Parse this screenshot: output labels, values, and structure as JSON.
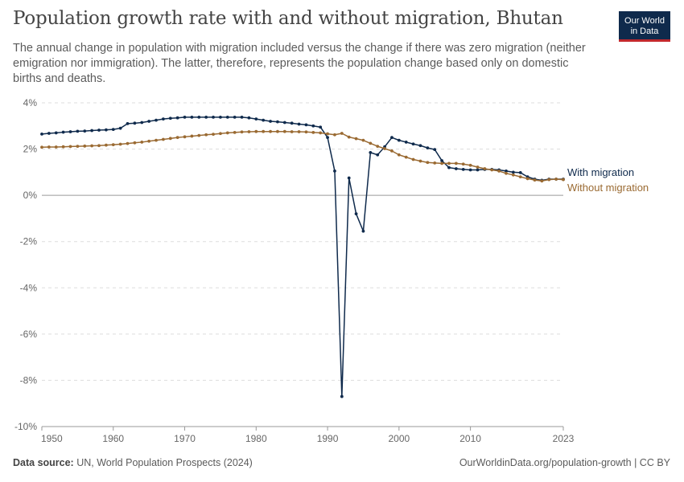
{
  "header": {
    "title": "Population growth rate with and without migration, Bhutan",
    "subtitle": "The annual change in population with migration included versus the change if there was zero migration (neither emigration nor immigration). The latter, therefore, represents the population change based only on domestic births and deaths."
  },
  "logo": {
    "line1": "Our World",
    "line2": "in Data"
  },
  "footer": {
    "source_label": "Data source:",
    "source_text": "UN, World Population Prospects (2024)",
    "link_text": "OurWorldinData.org/population-growth | CC BY"
  },
  "colors": {
    "with_migration": "#0f2a4c",
    "without_migration": "#9a6a32",
    "grid": "#dddddd",
    "zero_line": "#9a9a9a"
  },
  "chart_data": {
    "type": "line",
    "title": "Population growth rate with and without migration, Bhutan",
    "xlabel": "",
    "ylabel": "",
    "xlim": [
      1950,
      2023
    ],
    "ylim": [
      -10,
      4
    ],
    "y_ticks": [
      4,
      2,
      0,
      -2,
      -4,
      -6,
      -8,
      -10
    ],
    "y_tick_labels": [
      "4%",
      "2%",
      "0%",
      "-2%",
      "-4%",
      "-6%",
      "-8%",
      "-10%"
    ],
    "x_ticks": [
      1950,
      1960,
      1970,
      1980,
      1990,
      2000,
      2010,
      2023
    ],
    "x_tick_labels": [
      "1950",
      "1960",
      "1970",
      "1980",
      "1990",
      "2000",
      "2010",
      "2023"
    ],
    "grid": "horizontal dashed",
    "legend": "inline labels at right end of lines",
    "x": [
      1950,
      1951,
      1952,
      1953,
      1954,
      1955,
      1956,
      1957,
      1958,
      1959,
      1960,
      1961,
      1962,
      1963,
      1964,
      1965,
      1966,
      1967,
      1968,
      1969,
      1970,
      1971,
      1972,
      1973,
      1974,
      1975,
      1976,
      1977,
      1978,
      1979,
      1980,
      1981,
      1982,
      1983,
      1984,
      1985,
      1986,
      1987,
      1988,
      1989,
      1990,
      1991,
      1992,
      1993,
      1994,
      1995,
      1996,
      1997,
      1998,
      1999,
      2000,
      2001,
      2002,
      2003,
      2004,
      2005,
      2006,
      2007,
      2008,
      2009,
      2010,
      2011,
      2012,
      2013,
      2014,
      2015,
      2016,
      2017,
      2018,
      2019,
      2020,
      2021,
      2022,
      2023
    ],
    "series": [
      {
        "name": "With migration",
        "values": [
          2.65,
          2.68,
          2.7,
          2.73,
          2.75,
          2.77,
          2.78,
          2.8,
          2.82,
          2.83,
          2.85,
          2.9,
          3.1,
          3.12,
          3.15,
          3.2,
          3.25,
          3.3,
          3.33,
          3.35,
          3.38,
          3.38,
          3.38,
          3.38,
          3.38,
          3.38,
          3.38,
          3.38,
          3.38,
          3.35,
          3.3,
          3.25,
          3.2,
          3.18,
          3.15,
          3.12,
          3.08,
          3.05,
          3.0,
          2.95,
          2.5,
          1.05,
          -8.7,
          0.75,
          -0.8,
          -1.55,
          1.85,
          1.75,
          2.1,
          2.5,
          2.38,
          2.3,
          2.22,
          2.15,
          2.05,
          1.98,
          1.5,
          1.2,
          1.15,
          1.12,
          1.1,
          1.1,
          1.12,
          1.12,
          1.1,
          1.05,
          1.0,
          0.98,
          0.8,
          0.7,
          0.65,
          0.7,
          0.7,
          0.7
        ]
      },
      {
        "name": "Without migration",
        "values": [
          2.08,
          2.09,
          2.09,
          2.1,
          2.11,
          2.12,
          2.13,
          2.14,
          2.15,
          2.17,
          2.19,
          2.21,
          2.24,
          2.27,
          2.3,
          2.34,
          2.38,
          2.42,
          2.46,
          2.5,
          2.53,
          2.56,
          2.59,
          2.62,
          2.64,
          2.67,
          2.7,
          2.72,
          2.74,
          2.75,
          2.76,
          2.76,
          2.76,
          2.76,
          2.76,
          2.75,
          2.75,
          2.74,
          2.72,
          2.7,
          2.66,
          2.62,
          2.68,
          2.52,
          2.45,
          2.38,
          2.25,
          2.12,
          2.02,
          1.92,
          1.75,
          1.65,
          1.55,
          1.48,
          1.42,
          1.4,
          1.38,
          1.38,
          1.38,
          1.35,
          1.3,
          1.22,
          1.15,
          1.1,
          1.05,
          0.95,
          0.88,
          0.8,
          0.72,
          0.66,
          0.62,
          0.68,
          0.7,
          0.68
        ]
      }
    ]
  }
}
